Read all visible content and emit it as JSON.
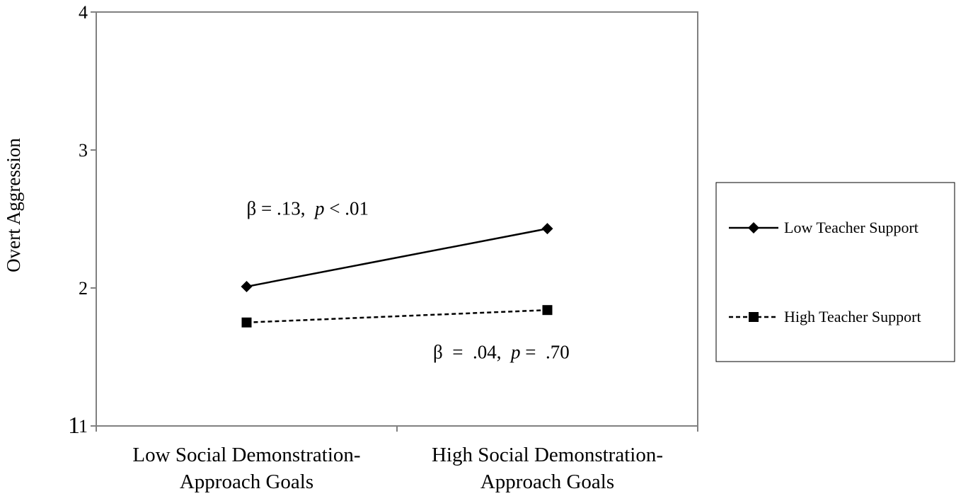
{
  "chart_data": {
    "type": "line",
    "categories": [
      "Low Social Demonstration-Approach Goals",
      "High Social Demonstration-Approach Goals"
    ],
    "category_lines": [
      [
        "Low Social Demonstration-",
        "Approach Goals"
      ],
      [
        "High Social Demonstration-",
        "Approach Goals"
      ]
    ],
    "series": [
      {
        "name": "Low Teacher Support",
        "values": [
          2.01,
          2.43
        ],
        "marker": "diamond",
        "line_style": "solid"
      },
      {
        "name": "High Teacher Support",
        "values": [
          1.75,
          1.84
        ],
        "marker": "square",
        "line_style": "dashed"
      }
    ],
    "ylabel": "Overt Aggression",
    "ylim": [
      1,
      4
    ],
    "yticks": [
      "1",
      "2",
      "3",
      "4"
    ],
    "bottom_tick_label": "1",
    "annotations": [
      {
        "parts": [
          [
            "β = .13,  ",
            "normal"
          ],
          [
            "p",
            "italic"
          ],
          [
            " < .01",
            "normal"
          ]
        ],
        "anchor_x": 0.25,
        "anchor_y": 2.53
      },
      {
        "parts": [
          [
            "β  =  .04,  ",
            "normal"
          ],
          [
            "p",
            "italic"
          ],
          [
            " =  .70",
            "normal"
          ]
        ],
        "anchor_x": 0.56,
        "anchor_y": 1.49
      }
    ],
    "legend_position": "right",
    "grid": false
  }
}
